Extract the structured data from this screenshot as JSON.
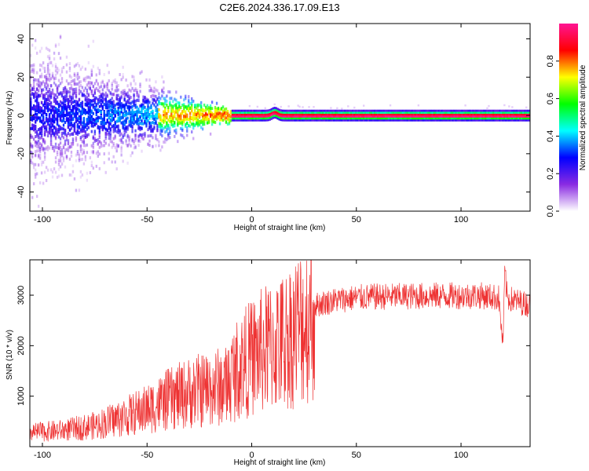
{
  "title": "C2E6.2024.336.17.09.E13",
  "chart_data": [
    {
      "type": "heatmap",
      "xlabel": "Height of straight line (km)",
      "ylabel": "Frequency (Hz)",
      "xlim": [
        -106,
        133
      ],
      "ylim": [
        -50,
        48
      ],
      "xticks": [
        -100,
        -50,
        0,
        50,
        100
      ],
      "yticks": [
        -40,
        -20,
        0,
        20,
        40
      ],
      "colorbar": {
        "label": "Normalized spectral amplitude",
        "ticks": [
          0.0,
          0.2,
          0.4,
          0.6,
          0.8
        ],
        "range": [
          0,
          1
        ],
        "colormap": [
          "#ffffff",
          "#8a2be2",
          "#0000ff",
          "#00ffff",
          "#00ff00",
          "#ffff00",
          "#ff0000",
          "#ff1493"
        ]
      },
      "features": {
        "carrier_frequency": 0,
        "noisy_region_x": [
          -106,
          -10
        ],
        "clean_line_x": [
          -10,
          133
        ],
        "bumps": [
          {
            "x": 11,
            "freq": 1.5
          }
        ]
      }
    },
    {
      "type": "line",
      "xlabel": "Height of straight line (km)",
      "ylabel": "SNR (10 * v/v)",
      "xlim": [
        -106,
        133
      ],
      "ylim": [
        0,
        3700
      ],
      "xticks": [
        -100,
        -50,
        0,
        50,
        100
      ],
      "yticks": [
        1000,
        2000,
        3000
      ],
      "color": "#ee3333",
      "series": [
        {
          "x": [
            -106,
            -90,
            -75,
            -60,
            -50,
            -40,
            -30,
            -20,
            -12,
            -10,
            -5,
            0,
            5,
            10,
            15,
            20,
            25,
            30,
            40,
            50,
            60,
            75,
            90,
            100,
            110,
            118,
            120,
            121,
            122,
            125,
            133
          ],
          "values": [
            300,
            350,
            450,
            650,
            800,
            1000,
            1150,
            1250,
            1300,
            1500,
            1750,
            1900,
            2050,
            2150,
            2250,
            2450,
            2650,
            2800,
            2900,
            2950,
            2970,
            2980,
            2990,
            2990,
            2990,
            2950,
            2000,
            3500,
            2950,
            2900,
            2800
          ]
        }
      ]
    }
  ]
}
